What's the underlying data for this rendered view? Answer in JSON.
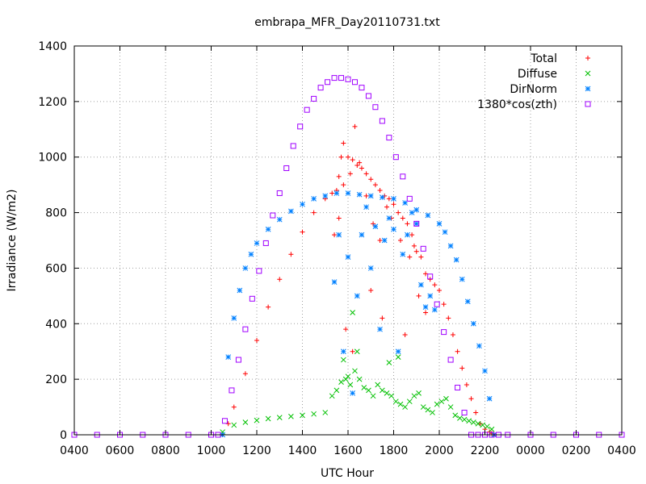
{
  "chart_data": {
    "type": "scatter",
    "title": "embrapa_MFR_Day20110731.txt",
    "xlabel": "UTC Hour",
    "ylabel": "Irradiance (W/m2)",
    "xlim": [
      4,
      28
    ],
    "ylim": [
      0,
      1400
    ],
    "x_tick_values": [
      4,
      6,
      8,
      10,
      12,
      14,
      16,
      18,
      20,
      22,
      24,
      26,
      28
    ],
    "x_tick_labels": [
      "0400",
      "0600",
      "0800",
      "1000",
      "1200",
      "1400",
      "1600",
      "1800",
      "2000",
      "2200",
      "0000",
      "0200",
      "0400"
    ],
    "y_tick_values": [
      0,
      200,
      400,
      600,
      800,
      1000,
      1200,
      1400
    ],
    "y_tick_labels": [
      "0",
      "200",
      "400",
      "600",
      "800",
      "1000",
      "1200",
      "1400"
    ],
    "grid": true,
    "legend_position": "top-right",
    "series": [
      {
        "name": "Total",
        "marker": "plus",
        "color": "#ff0000",
        "x": [
          10.5,
          10.75,
          11,
          11.5,
          12,
          12.5,
          13,
          13.5,
          14,
          14.5,
          15,
          15.3,
          15.5,
          15.6,
          15.7,
          15.8,
          16,
          16.2,
          16.4,
          16.6,
          16.8,
          17,
          17.2,
          17.4,
          17.6,
          17.8,
          18,
          18.2,
          18.4,
          18.6,
          18.8,
          18.9,
          19,
          19.2,
          19.4,
          19.6,
          19.8,
          20,
          20.2,
          20.4,
          20.6,
          20.8,
          21,
          21.2,
          21.4,
          21.6,
          21.8,
          22,
          22.2,
          22.3,
          22.4,
          15.4,
          15.6,
          15.8,
          16.1,
          16.3,
          16.5,
          16.8,
          17.1,
          17.4,
          17.7,
          17.9,
          18.3,
          18.7,
          19.1,
          19.4,
          15.9,
          16.2,
          17,
          17.5,
          18.5
        ],
        "y": [
          0,
          40,
          100,
          220,
          340,
          460,
          560,
          650,
          730,
          800,
          850,
          870,
          880,
          930,
          1000,
          1050,
          1000,
          990,
          970,
          960,
          940,
          920,
          900,
          880,
          860,
          850,
          830,
          800,
          780,
          760,
          720,
          680,
          660,
          640,
          580,
          560,
          540,
          520,
          470,
          420,
          360,
          300,
          240,
          180,
          130,
          80,
          40,
          20,
          10,
          5,
          0,
          720,
          780,
          900,
          940,
          1110,
          980,
          860,
          760,
          700,
          820,
          780,
          700,
          640,
          500,
          440,
          380,
          300,
          520,
          420,
          360
        ]
      },
      {
        "name": "Diffuse",
        "marker": "cross",
        "color": "#00c000",
        "x": [
          10.5,
          11,
          11.5,
          12,
          12.5,
          13,
          13.5,
          14,
          14.5,
          15,
          15.3,
          15.5,
          15.7,
          15.9,
          16.1,
          16.3,
          16.5,
          16.7,
          16.9,
          17.1,
          17.3,
          17.5,
          17.7,
          17.9,
          18.1,
          18.3,
          18.5,
          18.7,
          18.9,
          19.1,
          19.3,
          19.5,
          19.7,
          19.9,
          20.1,
          20.3,
          20.5,
          20.7,
          20.9,
          21.1,
          21.3,
          21.5,
          21.7,
          21.9,
          22.1,
          22.3,
          22.4,
          15.8,
          16,
          16.2,
          16.4,
          17.8,
          18.2
        ],
        "y": [
          10,
          35,
          45,
          52,
          58,
          62,
          66,
          70,
          75,
          80,
          140,
          160,
          190,
          200,
          180,
          230,
          200,
          170,
          160,
          140,
          180,
          160,
          150,
          140,
          120,
          110,
          100,
          120,
          140,
          150,
          100,
          90,
          80,
          110,
          120,
          130,
          100,
          70,
          60,
          55,
          50,
          45,
          40,
          35,
          30,
          20,
          0,
          270,
          210,
          440,
          300,
          260,
          280
        ]
      },
      {
        "name": "DirNorm",
        "marker": "star",
        "color": "#0080ff",
        "x": [
          10.5,
          10.75,
          11,
          11.25,
          11.5,
          11.75,
          12,
          12.5,
          13,
          13.5,
          14,
          14.5,
          15,
          15.5,
          16,
          16.5,
          17,
          17.5,
          18,
          18.5,
          19,
          19.5,
          20,
          20.25,
          20.5,
          20.75,
          21,
          21.25,
          21.5,
          21.75,
          22,
          22.2,
          22.4,
          15.4,
          15.6,
          15.8,
          16,
          16.2,
          16.4,
          16.6,
          16.8,
          17,
          17.2,
          17.4,
          17.6,
          17.8,
          18,
          18.2,
          18.4,
          18.6,
          18.8,
          19,
          19.2,
          19.4,
          19.6,
          19.8
        ],
        "y": [
          0,
          280,
          420,
          520,
          600,
          650,
          690,
          740,
          775,
          805,
          830,
          850,
          860,
          870,
          870,
          865,
          860,
          855,
          850,
          835,
          810,
          790,
          760,
          730,
          680,
          630,
          560,
          480,
          400,
          320,
          230,
          130,
          0,
          550,
          720,
          300,
          640,
          150,
          500,
          720,
          820,
          600,
          750,
          380,
          700,
          780,
          740,
          300,
          650,
          720,
          800,
          760,
          540,
          460,
          500,
          450
        ]
      },
      {
        "name": "1380*cos(zth)",
        "marker": "square",
        "color": "#a000ff",
        "x": [
          4,
          5,
          6,
          7,
          8,
          9,
          10,
          10.3,
          10.6,
          10.9,
          11.2,
          11.5,
          11.8,
          12.1,
          12.4,
          12.7,
          13,
          13.3,
          13.6,
          13.9,
          14.2,
          14.5,
          14.8,
          15.1,
          15.4,
          15.7,
          16,
          16.3,
          16.6,
          16.9,
          17.2,
          17.5,
          17.8,
          18.1,
          18.4,
          18.7,
          19,
          19.3,
          19.6,
          19.9,
          20.2,
          20.5,
          20.8,
          21.1,
          21.4,
          21.7,
          22,
          22.3,
          22.6,
          23,
          24,
          25,
          26,
          27,
          28
        ],
        "y": [
          0,
          0,
          0,
          0,
          0,
          0,
          0,
          0,
          50,
          160,
          270,
          380,
          490,
          590,
          690,
          790,
          870,
          960,
          1040,
          1110,
          1170,
          1210,
          1250,
          1270,
          1285,
          1285,
          1280,
          1270,
          1250,
          1220,
          1180,
          1130,
          1070,
          1000,
          930,
          850,
          760,
          670,
          570,
          470,
          370,
          270,
          170,
          80,
          0,
          0,
          0,
          0,
          0,
          0,
          0,
          0,
          0,
          0,
          0
        ]
      }
    ]
  }
}
